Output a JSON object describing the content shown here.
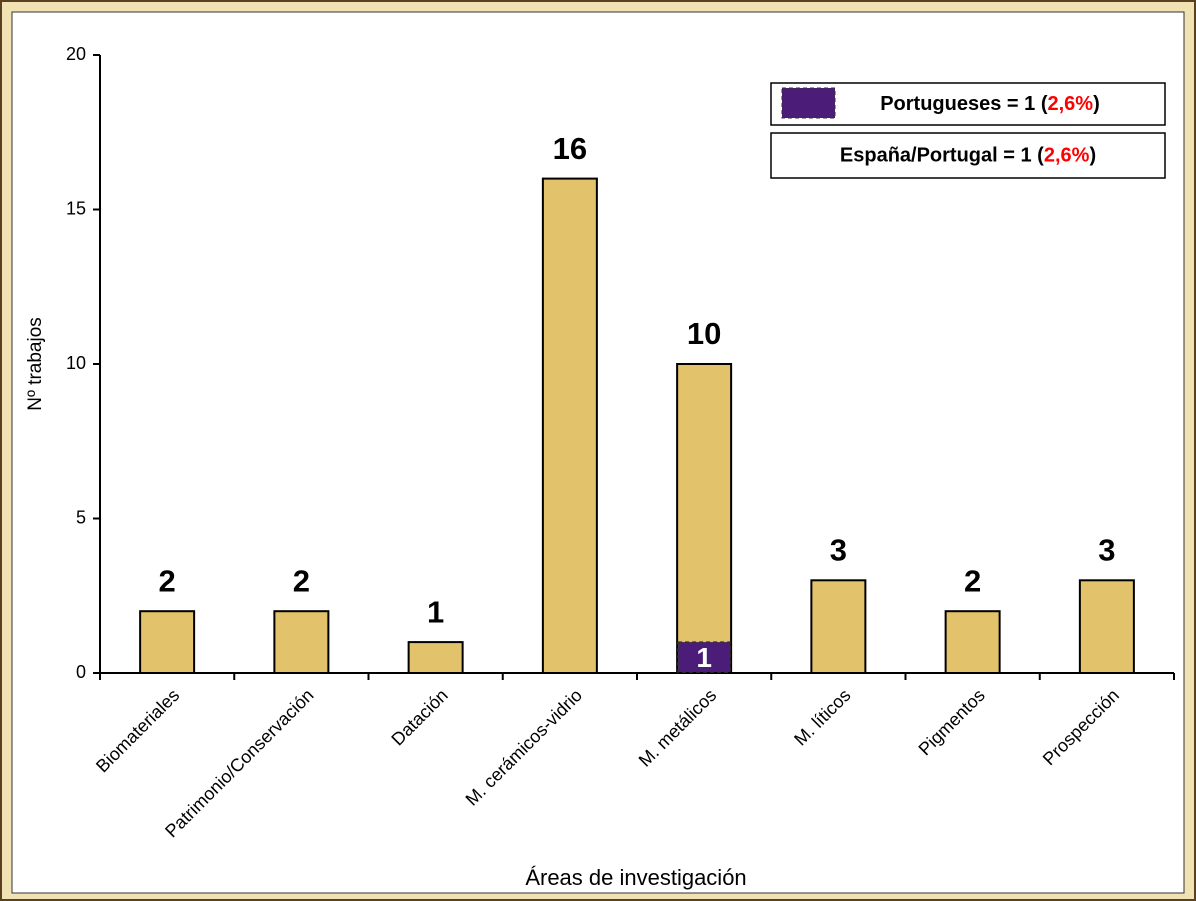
{
  "chart_data": {
    "type": "bar",
    "categories": [
      "Biomateriales",
      "Patrimonio/Conservación",
      "Datación",
      "M. cerámicos-vidrio",
      "M. metálicos",
      "M. líticos",
      "Pigmentos",
      "Prospección"
    ],
    "values": [
      2,
      2,
      1,
      16,
      10,
      3,
      2,
      3
    ],
    "color": "#e2c26a",
    "overlay": {
      "values": [
        null,
        null,
        null,
        null,
        1,
        null,
        null,
        null
      ],
      "color": "#4b1d78"
    },
    "xlabel": "Áreas de investigación",
    "ylabel": "Nº  trabajos",
    "ylim": [
      0,
      20
    ],
    "yticks": [
      0,
      5,
      10,
      15,
      20
    ],
    "grid": false,
    "legend": [
      {
        "parts": [
          "Portugueses = 1 (",
          "2,6%",
          ")"
        ],
        "swatch": true
      },
      {
        "parts": [
          "España/Portugal = 1 (",
          "2,6%",
          ")"
        ],
        "swatch": false
      }
    ],
    "highlight_color": "#ff0000"
  }
}
